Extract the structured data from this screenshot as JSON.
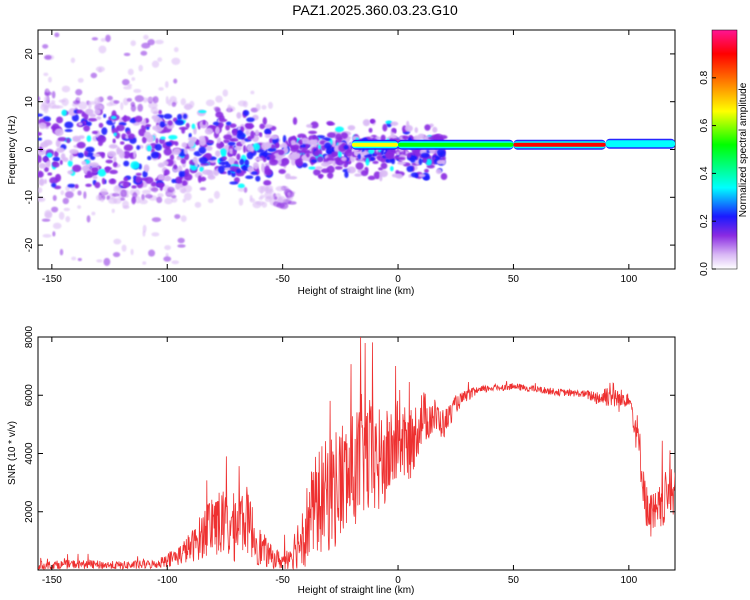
{
  "page": {
    "title": "PAZ1.2025.360.03.23.G10"
  },
  "chart_data": [
    {
      "id": "spectrogram",
      "type": "heatmap",
      "title": "PAZ1.2025.360.03.23.G10",
      "xlabel": "Height of straight line (km)",
      "ylabel": "Frequency (Hz)",
      "xlim": [
        -156,
        120
      ],
      "ylim": [
        -25,
        25
      ],
      "xticks": [
        -150,
        -100,
        -50,
        0,
        50,
        100
      ],
      "yticks": [
        -20,
        -10,
        0,
        10,
        20
      ],
      "colorbar": {
        "label": "Normalized spectral amplitude",
        "range": [
          0.0,
          1.0
        ],
        "ticks": [
          0.0,
          0.2,
          0.4,
          0.6,
          0.8
        ],
        "tick_labels": [
          "0.0",
          "0.2",
          "0.4",
          "0.6",
          "0.8"
        ],
        "colormap": [
          "#ffffff",
          "#d9b8f5",
          "#8a2be2",
          "#1a1aff",
          "#00ffff",
          "#00ff00",
          "#ffff00",
          "#ff7f00",
          "#ff0000",
          "#ff1493"
        ]
      },
      "signal_track": {
        "description_free": true,
        "segments": [
          {
            "x_start": -20,
            "x_end": 0,
            "freq": 1.0,
            "amplitude": 0.7
          },
          {
            "x_start": 0,
            "x_end": 50,
            "freq": 1.0,
            "amplitude": 0.55
          },
          {
            "x_start": 50,
            "x_end": 90,
            "freq": 1.0,
            "amplitude": 0.95
          },
          {
            "x_start": 90,
            "x_end": 120,
            "freq": 1.2,
            "amplitude": 0.4
          }
        ]
      }
    },
    {
      "id": "snr",
      "type": "line",
      "title": "",
      "xlabel": "Height of straight line (km)",
      "ylabel": "SNR (10 * v/v)",
      "xlim": [
        -156,
        120
      ],
      "ylim": [
        0,
        8000
      ],
      "xticks": [
        -150,
        -100,
        -50,
        0,
        50,
        100
      ],
      "yticks": [
        2000,
        4000,
        6000,
        8000
      ],
      "series": [
        {
          "name": "SNR",
          "color": "#ee3030",
          "x": [
            -155,
            -140,
            -120,
            -105,
            -95,
            -88,
            -80,
            -72,
            -66,
            -60,
            -55,
            -50,
            -45,
            -40,
            -35,
            -30,
            -25,
            -20,
            -15,
            -10,
            -5,
            0,
            5,
            10,
            15,
            20,
            25,
            30,
            35,
            40,
            50,
            60,
            70,
            80,
            88,
            92,
            96,
            100,
            104,
            108,
            112,
            116,
            120
          ],
          "y": [
            150,
            200,
            150,
            200,
            500,
            900,
            1700,
            1400,
            1800,
            800,
            450,
            300,
            700,
            1500,
            2300,
            2600,
            3000,
            3300,
            4000,
            3600,
            3800,
            4500,
            4200,
            5200,
            5300,
            5000,
            5700,
            6000,
            6150,
            6250,
            6300,
            6200,
            6100,
            6050,
            5900,
            6100,
            5800,
            6000,
            4500,
            2000,
            1800,
            2500,
            2700
          ],
          "spread": [
            150,
            150,
            150,
            150,
            350,
            600,
            1200,
            1200,
            1200,
            700,
            400,
            300,
            700,
            1400,
            1800,
            2000,
            2200,
            2000,
            2200,
            2000,
            1700,
            1400,
            1200,
            1000,
            700,
            500,
            300,
            200,
            150,
            120,
            120,
            120,
            120,
            120,
            300,
            500,
            400,
            300,
            800,
            800,
            900,
            900,
            800
          ]
        }
      ]
    }
  ]
}
